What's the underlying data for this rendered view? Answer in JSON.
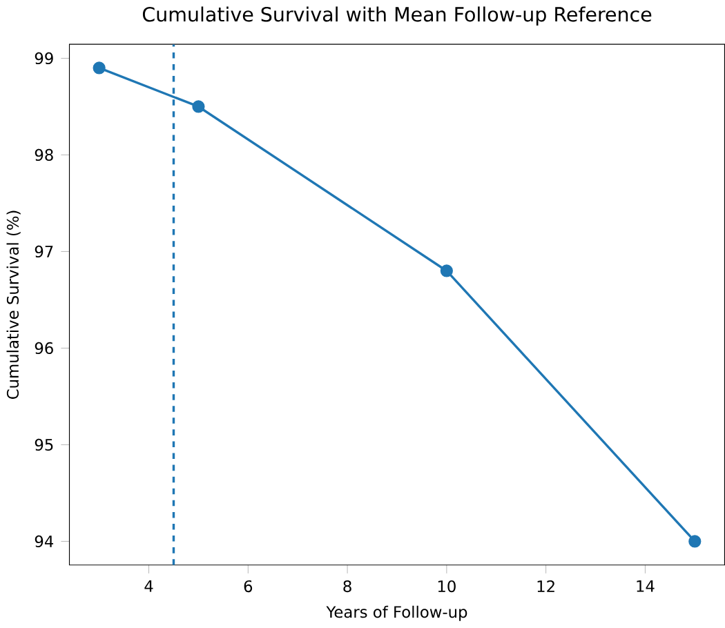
{
  "chart_data": {
    "type": "line",
    "title": "Cumulative Survival with Mean Follow-up Reference",
    "xlabel": "Years of Follow-up",
    "ylabel": "Cumulative Survival (%)",
    "x": [
      3,
      5,
      10,
      15
    ],
    "series": [
      {
        "color": "#1f77b4",
        "values": [
          98.9,
          98.5,
          96.8,
          94.0
        ]
      }
    ],
    "marker": "circle",
    "line_style": "solid",
    "xlim": [
      2.4,
      15.6
    ],
    "ylim": [
      93.755,
      99.145
    ],
    "xticks": [
      4,
      6,
      8,
      10,
      12,
      14
    ],
    "yticks": [
      94,
      95,
      96,
      97,
      98,
      99
    ],
    "ref_lines": [
      {
        "axis": "x",
        "value": 4.5,
        "color": "#1f77b4",
        "line_style": "dashed"
      }
    ]
  }
}
